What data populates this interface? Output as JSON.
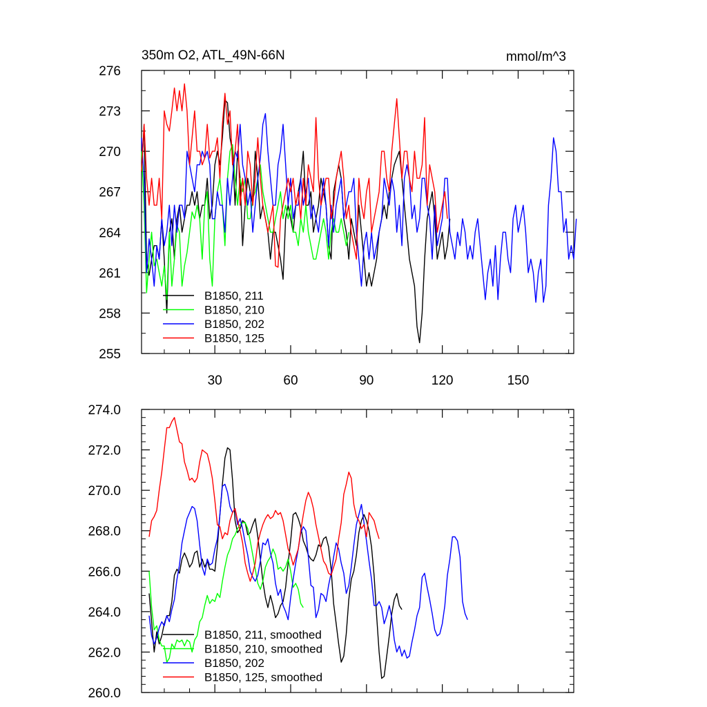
{
  "chart_data": [
    {
      "type": "line",
      "title": "350m O2, ATL_49N-66N",
      "units": "mmol/m^3",
      "xlim": [
        1,
        172
      ],
      "ylim": [
        255,
        276
      ],
      "xticks": [
        30,
        60,
        90,
        120,
        150
      ],
      "xtick_labels": [
        "30",
        "60",
        "90",
        "120",
        "150"
      ],
      "yticks": [
        255,
        258,
        261,
        264,
        267,
        270,
        273,
        276
      ],
      "ytick_labels": [
        "255",
        "258",
        "261",
        "264",
        "267",
        "270",
        "273",
        "276"
      ],
      "legend_position": "bottom-left",
      "series": [
        {
          "name": "B1850, 211",
          "color": "#000000",
          "x_start": 1,
          "values": [
            268.5,
            272,
            262,
            260.8,
            262,
            263,
            263,
            262,
            265,
            262,
            258,
            264,
            265,
            262,
            265,
            266,
            264,
            265,
            266,
            266,
            267,
            266,
            267,
            265,
            266,
            266,
            268,
            265,
            266,
            269,
            270,
            269,
            271,
            273.8,
            273.6,
            271,
            270,
            266,
            270,
            268,
            263,
            266,
            268,
            267,
            266,
            270,
            268,
            265,
            266,
            265,
            264,
            262,
            264,
            264,
            263,
            262,
            260.5,
            265,
            266,
            265,
            264,
            266,
            267,
            268,
            270,
            266,
            266,
            267,
            264,
            265,
            266,
            268,
            267,
            266,
            263,
            262,
            267,
            268,
            269,
            268,
            265,
            264,
            262,
            265,
            264,
            263,
            266,
            264,
            262,
            260,
            261,
            260,
            261,
            262,
            264,
            265,
            266,
            265,
            267,
            268,
            269,
            269.5,
            270,
            268,
            266,
            264,
            262,
            261,
            260,
            257,
            255.8,
            258,
            262,
            265,
            266,
            267,
            265,
            262,
            263,
            264,
            262,
            263,
            265
          ]
        },
        {
          "name": "B1850, 210",
          "color": "#00ff00",
          "x_start": 1,
          "values": [
            270,
            266,
            259.5,
            262,
            264,
            261.5,
            262,
            261,
            260,
            261.5,
            259,
            264,
            260,
            262,
            264.5,
            264,
            260,
            261.5,
            262.5,
            264,
            265.5,
            265,
            266,
            265,
            262,
            266,
            267,
            262,
            260,
            265,
            267,
            268,
            266,
            263,
            268,
            270,
            270.5,
            268,
            266,
            268,
            267,
            268,
            265,
            265,
            266.5,
            267,
            268,
            269,
            267,
            266,
            265,
            264,
            264,
            265,
            266,
            267,
            265,
            266,
            265,
            266,
            264,
            264,
            263,
            265,
            264,
            266,
            264,
            263,
            262,
            262,
            263,
            264,
            265,
            264,
            262,
            264,
            265,
            264,
            264,
            265,
            264,
            263,
            264
          ]
        },
        {
          "name": "B1850, 202",
          "color": "#0000ff",
          "x_start": 1,
          "values": [
            271,
            268,
            261,
            263.5,
            262,
            260,
            263,
            262,
            265,
            263,
            264,
            266,
            263,
            266,
            264,
            266,
            266,
            265,
            270,
            269,
            268,
            267,
            269,
            269,
            270,
            269.5,
            270,
            269,
            265,
            265,
            267,
            266,
            266,
            264,
            268,
            266,
            268,
            270,
            269.5,
            272,
            269,
            268,
            266,
            267,
            264,
            266,
            268,
            269.5,
            272,
            272.8,
            270,
            268,
            266,
            266,
            269,
            270,
            272,
            269,
            266,
            268,
            265,
            266,
            266,
            268,
            266,
            267,
            268,
            265,
            266,
            265,
            264,
            266,
            268,
            266,
            263,
            266,
            264,
            266,
            267,
            268,
            265,
            266,
            267,
            267,
            268,
            264,
            262,
            260,
            263,
            264,
            262,
            264,
            262,
            263,
            264,
            265,
            268,
            267,
            266,
            268,
            267,
            264,
            266,
            263,
            268,
            269,
            268,
            265,
            266,
            264,
            265,
            268,
            268,
            266,
            265,
            262,
            266,
            263,
            264,
            265,
            268,
            268,
            264,
            263,
            262,
            264,
            263,
            265,
            264,
            262,
            263,
            262,
            264,
            265,
            263,
            261,
            259,
            261,
            262,
            260,
            263,
            259,
            262,
            264,
            264,
            262,
            261,
            265,
            266,
            264,
            265,
            266,
            264,
            261,
            262,
            261,
            258.8,
            261,
            262,
            258.8,
            260,
            266,
            268,
            271,
            270,
            267,
            267,
            264,
            265,
            262,
            263,
            262,
            265
          ]
        },
        {
          "name": "B1850, 125",
          "color": "#ff0000",
          "x_start": 1,
          "values": [
            268.5,
            272,
            268,
            266,
            268,
            266,
            266,
            268,
            265,
            273,
            272,
            271.5,
            273,
            274.7,
            273,
            274.5,
            273,
            275,
            273,
            269,
            271,
            273,
            270,
            270,
            269,
            269.5,
            272,
            269.5,
            270,
            270,
            271,
            268,
            272,
            274.3,
            272,
            273,
            269,
            270,
            272,
            266,
            268,
            266,
            270,
            269,
            266,
            268,
            271,
            268,
            266,
            265,
            264,
            265,
            266,
            261.5,
            261.4,
            265,
            266,
            267,
            268,
            267,
            268,
            266,
            267,
            265,
            268,
            266,
            269,
            268,
            267,
            272.5,
            268,
            266,
            267,
            268,
            268,
            265,
            266,
            268,
            269,
            270,
            268,
            265,
            266,
            264,
            263,
            262,
            268,
            266,
            265,
            267,
            268,
            264,
            265,
            266,
            267,
            270,
            270,
            268,
            267,
            270,
            272,
            273.9,
            271,
            268,
            270,
            270,
            268,
            267,
            270,
            268,
            268,
            269,
            272.5,
            266,
            269,
            268,
            267,
            264,
            265,
            266,
            267,
            265
          ]
        }
      ]
    },
    {
      "type": "line",
      "title": "",
      "xlim": [
        1,
        172
      ],
      "ylim": [
        260,
        274
      ],
      "yticks": [
        260,
        262,
        264,
        266,
        268,
        270,
        272,
        274
      ],
      "ytick_labels": [
        "260.0",
        "262.0",
        "264.0",
        "266.0",
        "268.0",
        "270.0",
        "272.0",
        "274.0"
      ],
      "legend_position": "bottom-left",
      "series": [
        {
          "name": "B1850, 211, smoothed",
          "color": "#000000",
          "x_start": 4,
          "values": [
            264.9,
            263.5,
            262,
            263,
            262.4,
            262.8,
            263.4,
            263.8,
            263.8,
            264.5,
            265.8,
            266.1,
            265.9,
            266.6,
            266.9,
            266.6,
            266.2,
            266.4,
            266.9,
            267,
            266.2,
            266.6,
            266.2,
            266.5,
            266.1,
            266.1,
            266,
            267.2,
            268.8,
            270.3,
            271.6,
            272.1,
            272,
            270.5,
            268.5,
            267.9,
            268.1,
            268.5,
            268.4,
            267.8,
            267.9,
            268.3,
            268.6,
            267.7,
            266.6,
            265.5,
            264.7,
            264.2,
            264.8,
            264.3,
            263.7,
            263.9,
            264.3,
            264.5,
            265.2,
            266.4,
            267.5,
            268.8,
            268.9,
            268.6,
            268.2,
            267.5,
            267.2,
            266.8,
            266.6,
            266.5,
            266.8,
            267.3,
            267.2,
            267.6,
            267.7,
            267.2,
            266.1,
            264.4,
            263.4,
            262.4,
            261.5,
            261.8,
            262.9,
            264.6,
            265.6,
            266,
            266.8,
            267.9,
            268.5,
            268.8,
            268.5,
            268,
            267.2,
            265.8,
            263.8,
            262,
            260.7,
            260.8,
            261.8,
            262.8,
            263.9,
            264.6,
            264.9,
            264.3,
            264.1
          ]
        },
        {
          "name": "B1850, 210, smoothed",
          "color": "#00ff00",
          "x_start": 4,
          "values": [
            266,
            264.2,
            263.1,
            263.3,
            262.6,
            262.3,
            262.3,
            261.5,
            261.7,
            262.4,
            262.2,
            262.6,
            262.5,
            262.6,
            262.3,
            262.6,
            262.5,
            262,
            262.6,
            262.8,
            263.5,
            263.7,
            264.3,
            264.8,
            264.4,
            264.6,
            264.5,
            264.9,
            264.7,
            265.5,
            266.2,
            266.8,
            267.1,
            267.6,
            267.8,
            268.1,
            268.3,
            268.4,
            268.4,
            268.1,
            267.5,
            266.8,
            266.1,
            265.4,
            265.1,
            265.5,
            266.2,
            266.5,
            266.7,
            267.1,
            266.8,
            266.1,
            266.2,
            266,
            266.2,
            266.6,
            266,
            265.2,
            265.4,
            265.1,
            264.4,
            264.2
          ]
        },
        {
          "name": "B1850, 202",
          "color": "#0000ff",
          "x_start": 4,
          "values": [
            263.8,
            262.8,
            262.4,
            262.7,
            263.2,
            263.5,
            263.3,
            263.8,
            263.5,
            264.1,
            264.6,
            265.6,
            266.3,
            267.4,
            268,
            268.6,
            268.9,
            269.2,
            269.1,
            268.5,
            267.3,
            266.2,
            265.8,
            266.6,
            266.3,
            266.4,
            267.1,
            267.6,
            268.8,
            270.2,
            270.3,
            269.9,
            269.2,
            268.9,
            269.1,
            268.3,
            268.6,
            268.1,
            267.4,
            266.8,
            266,
            265.7,
            265.5,
            265.8,
            266.5,
            267.4,
            267.3,
            267.6,
            266.9,
            266.4,
            265.4,
            264.8,
            265.1,
            264.3,
            264,
            263.6,
            264.7,
            265.6,
            266.4,
            267.1,
            267.9,
            268.2,
            268,
            266.7,
            265.3,
            265.2,
            263.7,
            264.1,
            264.9,
            264.8,
            264.5,
            265.3,
            265.9,
            266.7,
            267.4,
            267.1,
            266.4,
            265.9,
            264.9,
            265.3,
            266.2,
            267.3,
            268.3,
            268.8,
            269.3,
            268.4,
            267.5,
            266.5,
            265.6,
            264.3,
            264.3,
            264.5,
            264.2,
            263.4,
            263.8,
            264.3,
            263.7,
            262.6,
            262,
            262.3,
            261.8,
            262.1,
            261.7,
            261.8,
            262.5,
            263.1,
            263.8,
            264.2,
            265.7,
            265.9,
            265.2,
            264.6,
            263.9,
            263.1,
            262.8,
            262.9,
            263.4,
            264.3,
            265.8,
            266.6,
            267.7,
            267.7,
            267.5,
            266.7,
            264.5,
            263.9,
            263.6
          ]
        },
        {
          "name": "B1850, 125, smoothed",
          "color": "#ff0000",
          "x_start": 4,
          "values": [
            267.7,
            268.5,
            268.7,
            269,
            270,
            270.9,
            272,
            273.1,
            273.1,
            273.4,
            273.6,
            273,
            272.4,
            272.3,
            271.4,
            271,
            270.5,
            270.6,
            270.4,
            270.6,
            271.4,
            272,
            271.9,
            271.8,
            271.3,
            270.6,
            269.5,
            268.3,
            268.2,
            267.6,
            267.9,
            267.8,
            268.5,
            268.9,
            269.1,
            268.5,
            268,
            267.4,
            266.4,
            265.9,
            265.5,
            265.9,
            266.4,
            267.4,
            267.9,
            268.3,
            268.6,
            268.8,
            268.6,
            268.7,
            269,
            268.8,
            268.9,
            268.5,
            267.8,
            267.1,
            266.8,
            266.3,
            266.7,
            267.1,
            268,
            268.8,
            269.5,
            269.9,
            269.6,
            269.1,
            268.3,
            267.7,
            267.1,
            266.5,
            266.3,
            265.9,
            265.8,
            266.2,
            266.6,
            267.6,
            268.4,
            269.8,
            270.3,
            270.9,
            270.6,
            269.3,
            268.7,
            268.5,
            268.1,
            268.3,
            267.7,
            268.9,
            268.7,
            268.5,
            268,
            267.6
          ]
        }
      ]
    }
  ]
}
